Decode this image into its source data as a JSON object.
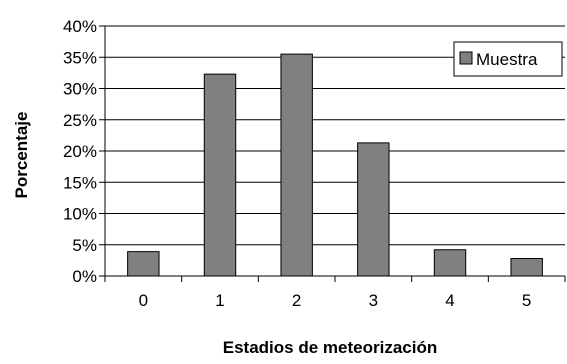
{
  "chart_data": {
    "type": "bar",
    "title": "",
    "xlabel": "Estadios de meteorización",
    "ylabel": "Porcentaje",
    "categories": [
      "0",
      "1",
      "2",
      "3",
      "4",
      "5"
    ],
    "series": [
      {
        "name": "Muestra",
        "values": [
          3.9,
          32.3,
          35.5,
          21.3,
          4.2,
          2.8
        ],
        "color": "#808080"
      }
    ],
    "ylim": [
      0,
      40
    ],
    "yticks": [
      0,
      5,
      10,
      15,
      20,
      25,
      30,
      35,
      40
    ],
    "ytick_labels": [
      "0%",
      "5%",
      "10%",
      "15%",
      "20%",
      "25%",
      "30%",
      "35%",
      "40%"
    ],
    "grid": true,
    "legend_position": "top-right"
  }
}
